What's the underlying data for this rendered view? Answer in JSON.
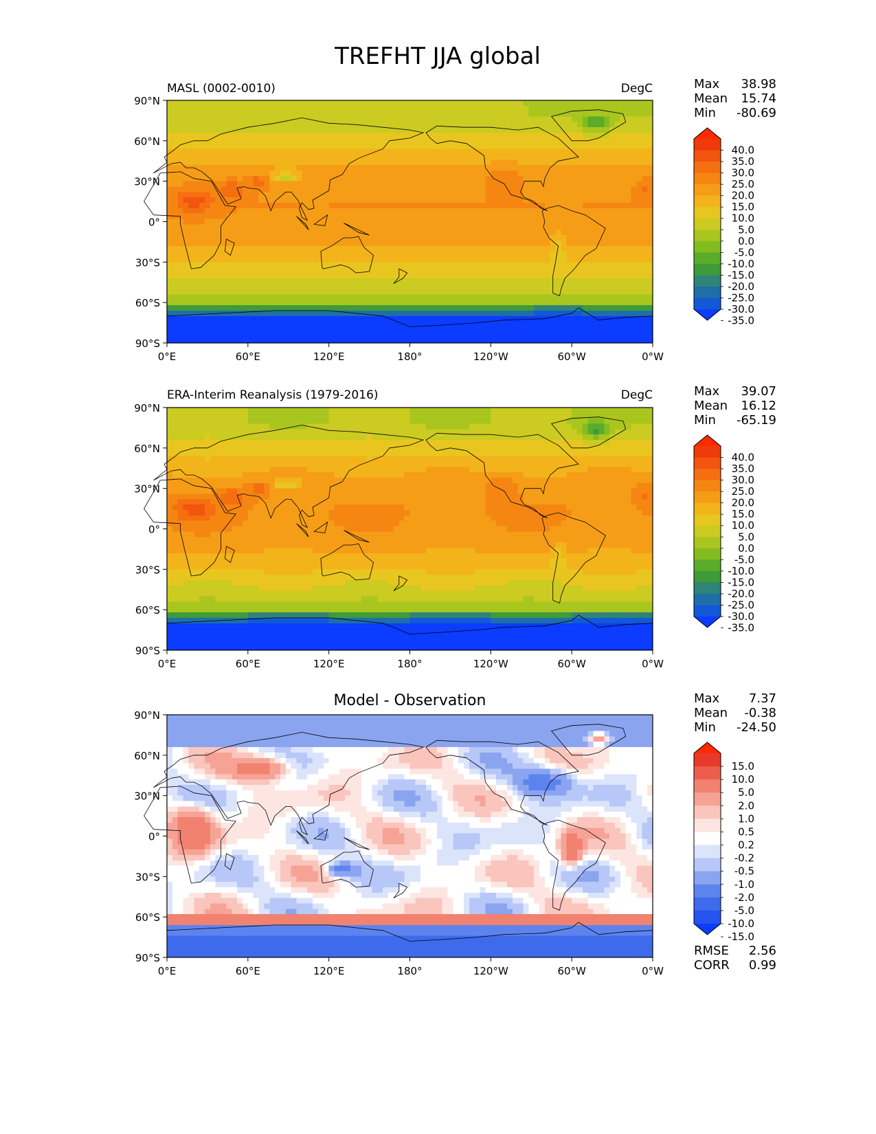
{
  "figure_title": "TREFHT JJA global",
  "axis_ticks": {
    "lat": [
      "90°N",
      "60°N",
      "30°N",
      "0°",
      "30°S",
      "60°S",
      "90°S"
    ],
    "lon": [
      "0°E",
      "60°E",
      "120°E",
      "180°",
      "120°W",
      "60°W",
      "0°W"
    ]
  },
  "colors": {
    "temp_scale": [
      "#0b3cff",
      "#1259d6",
      "#1f6ea8",
      "#2f8478",
      "#3f9a3a",
      "#5aac2a",
      "#83bc1e",
      "#a8c61e",
      "#cbcb22",
      "#e8c61f",
      "#f3b31a",
      "#f69d18",
      "#f58612",
      "#f56f10",
      "#f2550d",
      "#ef3a0a",
      "#ff2a00"
    ],
    "diff_scale": [
      "#0b3cff",
      "#2553f0",
      "#3d6bec",
      "#5d84ee",
      "#8ba4f0",
      "#b7c7f7",
      "#dce4fb",
      "#ffffff",
      "#fde6e2",
      "#f9c5bd",
      "#f6a396",
      "#f1826f",
      "#ec5e4b",
      "#e83a28",
      "#ff2a00"
    ]
  },
  "chart_data": [
    {
      "type": "heatmap",
      "id": "model",
      "title_left": "MASL (0002-0010)",
      "title_right": "DegC",
      "xlabel": "",
      "ylabel": "",
      "xlim": [
        0,
        360
      ],
      "ylim": [
        -90,
        90
      ],
      "field": "temperature",
      "colorbar_ticks": [
        "40.0",
        "35.0",
        "30.0",
        "25.0",
        "20.0",
        "15.0",
        "10.0",
        "5.0",
        "0.0",
        "-5.0",
        "-10.0",
        "-15.0",
        "-20.0",
        "-25.0",
        "-30.0",
        "-35.0"
      ],
      "stats": [
        {
          "label": "Max",
          "value": "38.98"
        },
        {
          "label": "Mean",
          "value": "15.74"
        },
        {
          "label": "Min",
          "value": "-80.69"
        }
      ]
    },
    {
      "type": "heatmap",
      "id": "obs",
      "title_left": "ERA-Interim Reanalysis (1979-2016)",
      "title_right": "DegC",
      "xlabel": "",
      "ylabel": "",
      "xlim": [
        0,
        360
      ],
      "ylim": [
        -90,
        90
      ],
      "field": "temperature",
      "colorbar_ticks": [
        "40.0",
        "35.0",
        "30.0",
        "25.0",
        "20.0",
        "15.0",
        "10.0",
        "5.0",
        "0.0",
        "-5.0",
        "-10.0",
        "-15.0",
        "-20.0",
        "-25.0",
        "-30.0",
        "-35.0"
      ],
      "stats": [
        {
          "label": "Max",
          "value": "39.07"
        },
        {
          "label": "Mean",
          "value": "16.12"
        },
        {
          "label": "Min",
          "value": "-65.19"
        }
      ]
    },
    {
      "type": "heatmap",
      "id": "diff",
      "title_center": "Model - Observation",
      "xlabel": "",
      "ylabel": "",
      "xlim": [
        0,
        360
      ],
      "ylim": [
        -90,
        90
      ],
      "field": "difference",
      "colorbar_ticks": [
        "15.0",
        "10.0",
        "5.0",
        "2.0",
        "1.0",
        "0.5",
        "0.2",
        "-0.2",
        "-0.5",
        "-1.0",
        "-2.0",
        "-5.0",
        "-10.0",
        "-15.0"
      ],
      "stats": [
        {
          "label": "Max",
          "value": "7.37"
        },
        {
          "label": "Mean",
          "value": "-0.38"
        },
        {
          "label": "Min",
          "value": "-24.50"
        }
      ],
      "extra_stats": [
        {
          "label": "RMSE",
          "value": "2.56"
        },
        {
          "label": "CORR",
          "value": "0.99"
        }
      ]
    }
  ]
}
